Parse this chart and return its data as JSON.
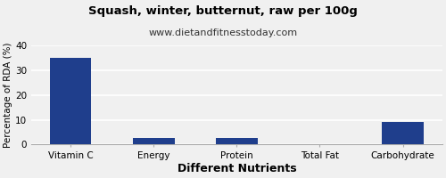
{
  "title": "Squash, winter, butternut, raw per 100g",
  "subtitle": "www.dietandfitnesstoday.com",
  "xlabel": "Different Nutrients",
  "ylabel": "Percentage of RDA (%)",
  "categories": [
    "Vitamin C",
    "Energy",
    "Protein",
    "Total Fat",
    "Carbohydrate"
  ],
  "values": [
    35,
    2.5,
    2.5,
    0.3,
    9.3
  ],
  "bar_color": "#1f3e8c",
  "ylim": [
    0,
    40
  ],
  "yticks": [
    0,
    10,
    20,
    30,
    40
  ],
  "background_color": "#f0f0f0",
  "grid_color": "#ffffff",
  "title_fontsize": 9.5,
  "subtitle_fontsize": 8,
  "xlabel_fontsize": 9,
  "ylabel_fontsize": 7.5,
  "tick_fontsize": 7.5
}
